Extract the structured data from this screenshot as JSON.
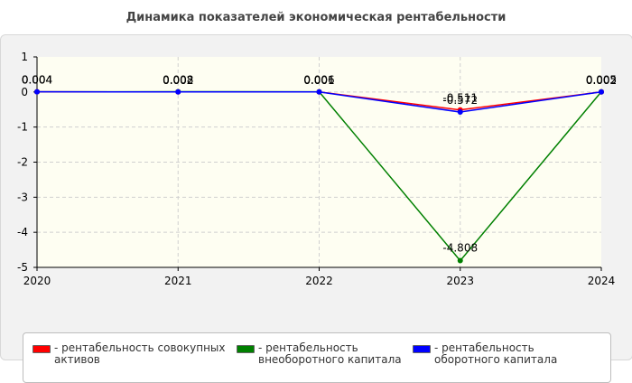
{
  "chart_data": {
    "type": "line",
    "title": "Динамика показателей экономическая рентабельности",
    "xlabel": "",
    "ylabel": "",
    "categories": [
      "2020",
      "2021",
      "2022",
      "2023",
      "2024"
    ],
    "ylim": [
      -5,
      1
    ],
    "yticks": [
      "1",
      "0",
      "-1",
      "-2",
      "-3",
      "-4",
      "-5"
    ],
    "grid": true,
    "legend_position": "bottom",
    "series": [
      {
        "name": "- рентабельность совокупных активов",
        "color": "#ff0000",
        "values": [
          0.004,
          0.002,
          0.001,
          -0.511,
          0.002
        ],
        "labels": [
          "0.004",
          "0.002",
          "0.001",
          "-0.511",
          "0.002"
        ]
      },
      {
        "name": "- рентабельность внеоборотного капитала",
        "color": "#008000",
        "values": [
          0.004,
          0.008,
          0.006,
          -4.808,
          0.005
        ],
        "labels": [
          "0.004",
          "0.008",
          "0.006",
          "-4.808",
          "0.005"
        ]
      },
      {
        "name": "- рентабельность оборотного капитала",
        "color": "#0000ff",
        "values": [
          0.004,
          0.002,
          0.001,
          -0.572,
          0.002
        ],
        "labels": [
          "0.004",
          "0.002",
          "0.001",
          "-0.572",
          "0.002"
        ]
      }
    ]
  }
}
